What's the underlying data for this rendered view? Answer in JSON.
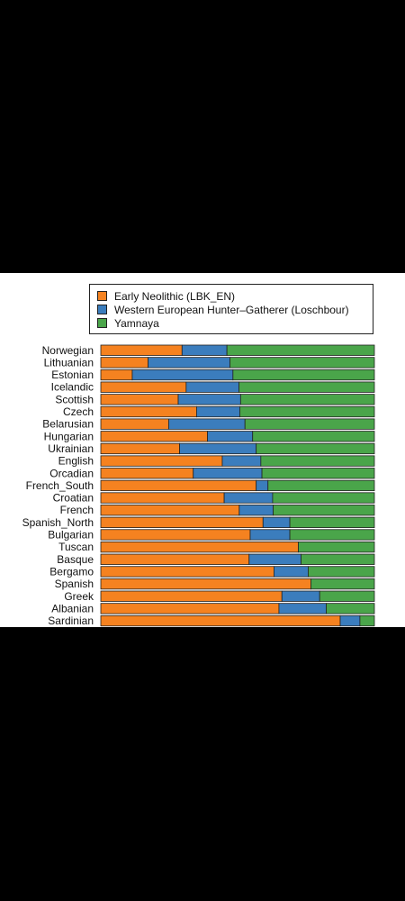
{
  "chart_data": {
    "type": "bar",
    "orientation": "horizontal",
    "stacked": true,
    "normalized": true,
    "xlim": [
      0,
      1
    ],
    "legend_position": "top",
    "grid": false,
    "categories": [
      "Norwegian",
      "Lithuanian",
      "Estonian",
      "Icelandic",
      "Scottish",
      "Czech",
      "Belarusian",
      "Hungarian",
      "Ukrainian",
      "English",
      "Orcadian",
      "French_South",
      "Croatian",
      "French",
      "Spanish_North",
      "Bulgarian",
      "Tuscan",
      "Basque",
      "Bergamo",
      "Spanish",
      "Greek",
      "Albanian",
      "Sardinian"
    ],
    "series": [
      {
        "name": "Early Neolithic (LBK_EN)",
        "color": "#f58220",
        "values": [
          0.297,
          0.173,
          0.115,
          0.312,
          0.283,
          0.35,
          0.248,
          0.39,
          0.288,
          0.444,
          0.338,
          0.568,
          0.451,
          0.506,
          0.593,
          0.546,
          0.722,
          0.542,
          0.633,
          0.768,
          0.662,
          0.651,
          0.875
        ]
      },
      {
        "name": "Western European Hunter–Gatherer (Loschbour)",
        "color": "#3b7dbd",
        "values": [
          0.164,
          0.299,
          0.368,
          0.193,
          0.228,
          0.158,
          0.279,
          0.165,
          0.28,
          0.141,
          0.251,
          0.043,
          0.177,
          0.124,
          0.098,
          0.145,
          0.0,
          0.19,
          0.125,
          0.0,
          0.138,
          0.173,
          0.072
        ]
      },
      {
        "name": "Yamnaya",
        "color": "#4aa54a",
        "values": [
          0.539,
          0.528,
          0.517,
          0.495,
          0.489,
          0.492,
          0.473,
          0.445,
          0.432,
          0.415,
          0.411,
          0.389,
          0.372,
          0.37,
          0.309,
          0.309,
          0.278,
          0.268,
          0.242,
          0.232,
          0.2,
          0.176,
          0.053
        ]
      }
    ]
  }
}
